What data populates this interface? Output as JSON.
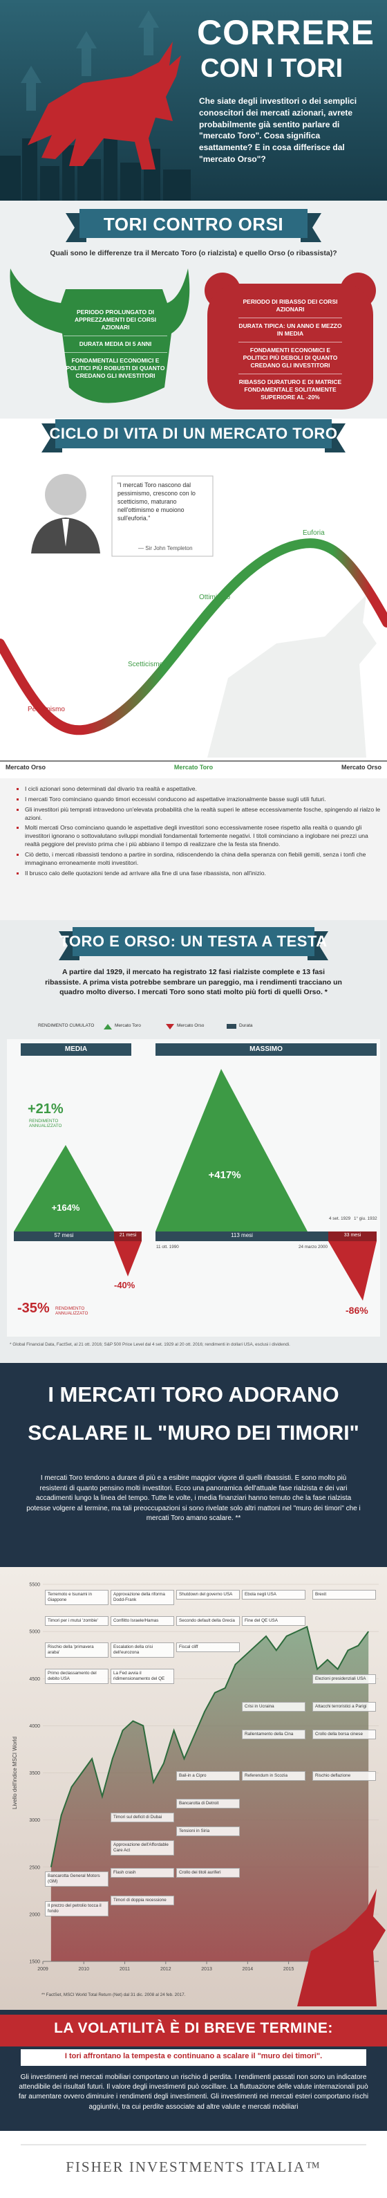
{
  "header": {
    "title_line1": "CORRERE",
    "title_line2": "CON I TORI",
    "intro": "Che siate degli investitori o dei semplici conoscitori dei mercati azionari, avrete probabilmente già sentito parlare di \"mercato Toro\". Cosa significa esattamente? E in cosa differisce dal \"mercato Orso\"?"
  },
  "bulls_vs_bears": {
    "title": "TORI CONTRO ORSI",
    "question": "Quali sono le differenze tra il Mercato Toro (o rialzista) e quello Orso (o ribassista)?",
    "bull": [
      "PERIODO PROLUNGATO DI APPREZZAMENTI DEI CORSI AZIONARI",
      "DURATA MEDIA DI 5 ANNI",
      "FONDAMENTALI ECONOMICI E POLITICI PIÙ ROBUSTI DI QUANTO CREDANO GLI INVESTITORI"
    ],
    "bear": [
      "PERIODO DI RIBASSO DEI CORSI AZIONARI",
      "DURATA TIPICA: UN ANNO E MEZZO IN MEDIA",
      "FONDAMENTI ECONOMICI E POLITICI PIÙ DEBOLI DI QUANTO CREDANO GLI INVESTITORI",
      "RIBASSO DURATURO E DI MATRICE FONDAMENTALE SOLITAMENTE SUPERIORE AL -20%"
    ]
  },
  "lifecycle": {
    "title": "CICLO DI VITA DI UN MERCATO TORO",
    "quote": "\"I mercati Toro nascono dal pessimismo, crescono con lo scetticismo, maturano nell'ottimismo e muoiono sull'euforia.\"",
    "quote_author": "— Sir John Templeton",
    "stages": [
      "Pessimismo",
      "Scetticismo",
      "Ottimismo",
      "Euforia"
    ],
    "phases": [
      "Mercato Orso",
      "Mercato Toro",
      "Mercato Orso"
    ],
    "bullets": [
      "I cicli azionari sono determinati dal divario tra realtà e aspettative.",
      "I mercati Toro cominciano quando timori eccessivi conducono ad aspettative irrazionalmente basse sugli utili futuri.",
      "Gli investitori più temprati intravedono un'elevata probabilità che la realtà superi le attese eccessivamente fosche, spingendo al rialzo le azioni.",
      "Molti mercati Orso cominciano quando le aspettative degli investitori sono eccessivamente rosee rispetto alla realtà o quando gli investitori ignorano o sottovalutano sviluppi mondiali fondamentali fortemente negativi. I titoli cominciano a inglobare nei prezzi una realtà peggiore del previsto prima che i più abbiano il tempo di realizzare che la festa sta finendo.",
      "Ciò detto, i mercati ribassisti tendono a partire in sordina, ridiscendendo la china della speranza con flebili gemiti, senza i tonfi che immaginano erroneamente molti investitori.",
      "Il brusco calo delle quotazioni tende ad arrivare alla fine di una fase ribassista, non all'inizio."
    ]
  },
  "head_to_head": {
    "title": "TORO E ORSO: UN TESTA A TESTA",
    "intro": "A partire dal 1929, il mercato ha registrato 12 fasi rialziste complete e 13 fasi ribassiste. A prima vista potrebbe sembrare un pareggio, ma i rendimenti tracciano un quadro molto diverso. I mercati Toro sono stati molto più forti di quelli Orso. *",
    "legend": {
      "label": "RENDIMENTO CUMULATO",
      "items": [
        "Mercato Toro",
        "Mercato Orso",
        "Durata"
      ]
    },
    "average": {
      "heading": "MEDIA",
      "annualized_bull": "+21%",
      "annualized_bear": "-35%",
      "annualized_label": "RENDIMENTO ANNUALIZZATO",
      "bull_return": "+164%",
      "bear_return": "-40%",
      "bull_duration": "57 mesi",
      "bear_duration": "21 mesi"
    },
    "maximum": {
      "heading": "MASSIMO",
      "bull_return": "+417%",
      "bear_return": "-86%",
      "bull_duration": "113 mesi",
      "bear_duration": "33 mesi",
      "bull_start": "11 ott. 1990",
      "bull_end": "24 marzo 2000",
      "bear_start": "4 set. 1929",
      "bear_end": "1° giu. 1932"
    },
    "footnote": "* Global Financial Data, FactSet, al 21 ott. 2016; S&P 500 Price Level dal 4 set. 1929 al 20 ott. 2016; rendimenti in dollari USA, esclusi i dividendi."
  },
  "wall_of_worry": {
    "title_line1": "I MERCATI TORO ADORANO",
    "title_line2": "SCALARE IL \"MURO DEI TIMORI\"",
    "intro": "I mercati Toro tendono a durare di più e a esibire maggior vigore di quelli ribassisti. E sono molto più resistenti di quanto pensino molti investitori. Ecco una panoramica dell'attuale fase rialzista e dei vari accadimenti lungo la linea del tempo. Tutte le volte, i media finanziari hanno temuto che la fase rialzista potesse volgere al termine, ma tali preoccupazioni si sono rivelate solo altri mattoni nel \"muro dei timori\" che i mercati Toro amano scalare. **",
    "annotations": [
      "Terremoto e tsunami in Giappone",
      "Timori per i mutui 'zombie'",
      "Rischio della 'primavera araba'",
      "Primo declassamento del debito USA",
      "Bancarotta General Motors (GM)",
      "Il prezzo del petrolio tocca il fondo",
      "Approvazione della riforma Dodd-Frank",
      "Conflitto Israele/Hamas",
      "Escalation della crisi dell'eurozona",
      "La Fed avvia il ridimensionamento del QE",
      "Timori sul deficit di Dubai",
      "Approvazione dell'Affordable Care Act",
      "Flash crash",
      "Timori di doppia recessione",
      "Shutdown del governo USA",
      "Secondo default della Grecia",
      "Fiscal cliff",
      "Bail-in a Cipro",
      "Bancarotta di Detroit",
      "Tensioni in Siria",
      "Crollo dei titoli auriferi",
      "Ebola negli USA",
      "Fine del QE USA",
      "Crisi in Ucraina",
      "Rallentamento della Cina",
      "Referendum in Scozia",
      "Brexit",
      "Elezioni presidenziali USA",
      "Attacchi terroristici a Parigi",
      "Crollo della borsa cinese",
      "Rischio deflazione"
    ],
    "footnote": "** FactSet, MSCI World Total Return (Net) dal 31 dic. 2008 al 24 feb. 2017."
  },
  "chart_data": {
    "type": "line",
    "y_label": "Livello dell'indice MSCI World",
    "x": [
      2009.2,
      2009.45,
      2009.7,
      2009.95,
      2010.2,
      2010.45,
      2010.7,
      2010.95,
      2011.2,
      2011.45,
      2011.7,
      2011.95,
      2012.2,
      2012.45,
      2012.7,
      2012.95,
      2013.2,
      2013.45,
      2013.7,
      2013.95,
      2014.2,
      2014.45,
      2014.7,
      2014.95,
      2015.2,
      2015.45,
      2015.7,
      2015.95,
      2016.2,
      2016.45,
      2016.7,
      2016.95
    ],
    "values": [
      2500,
      3050,
      3350,
      3500,
      3650,
      3250,
      3650,
      3950,
      4050,
      4000,
      3400,
      3600,
      3950,
      3650,
      3900,
      4150,
      4350,
      4400,
      4650,
      4750,
      4850,
      4950,
      4800,
      4950,
      5000,
      5050,
      4600,
      4700,
      4600,
      4800,
      4850,
      5000
    ],
    "color": "#2d6b3c",
    "xlim": [
      2009,
      2017.2
    ],
    "xticks": [
      2009,
      2010,
      2011,
      2012,
      2013,
      2014,
      2015,
      2016
    ],
    "ylim": [
      1500,
      5500
    ],
    "yticks": [
      1500,
      2000,
      2500,
      3000,
      3500,
      4000,
      4500,
      5000,
      5500
    ],
    "grid": true
  },
  "volatility": {
    "title": "LA VOLATILITÀ È DI BREVE TERMINE:",
    "subtitle": "I tori affrontano la tempesta e continuano a scalare il \"muro dei timori\".",
    "disclaimer": "Gli investimenti nei mercati mobiliari comportano un rischio di perdita. I rendimenti passati non sono un indicatore attendibile dei risultati futuri. Il valore degli investimenti può oscillare. La fluttuazione delle valute internazionali può far aumentare ovvero diminuire i rendimenti degli investimenti. Gli investimenti nei mercati esteri comportano rischi aggiuntivi, tra cui perdite associate ad altre valute e mercati mobiliari"
  },
  "footer": {
    "brand": "FISHER INVESTMENTS ITALIA™"
  }
}
